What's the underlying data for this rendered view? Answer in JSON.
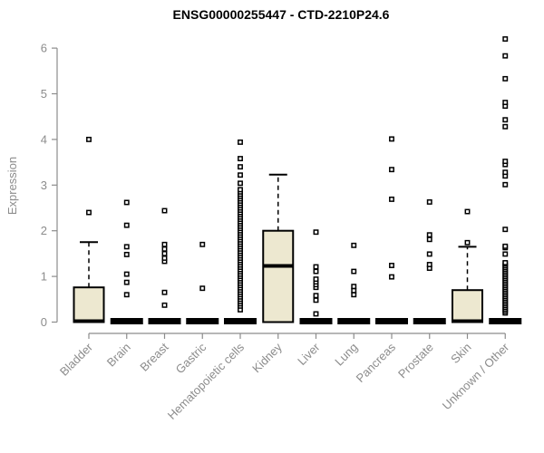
{
  "chart_data": {
    "type": "boxplot",
    "title": "ENSG00000255447 - CTD-2210P24.6",
    "xlabel": "",
    "ylabel": "Expression",
    "ylim": [
      0,
      6
    ],
    "yticks": [
      0,
      1,
      2,
      3,
      4,
      5,
      6
    ],
    "grid": false,
    "legend": "none",
    "colors": {
      "box_fill": "#ede8d0",
      "box_stroke": "#000000",
      "median": "#000000",
      "outlier_stroke": "#000000",
      "outlier_fill": "#ffffff",
      "axis": "#8c8c8c",
      "tick_label": "#8c8c8c",
      "title": "#000000"
    },
    "categories": [
      "Bladder",
      "Brain",
      "Breast",
      "Gastric",
      "Hematopoietic cells",
      "Kidney",
      "Liver",
      "Lung",
      "Pancreas",
      "Prostate",
      "Skin",
      "Unknown / Other"
    ],
    "series": [
      {
        "name": "Bladder",
        "q1": 0,
        "median": 0.02,
        "q3": 0.76,
        "whisker_low": 0,
        "whisker_high": 1.75,
        "outliers": [
          2.4,
          4.0
        ]
      },
      {
        "name": "Brain",
        "q1": 0,
        "median": 0,
        "q3": 0,
        "whisker_low": 0,
        "whisker_high": 0,
        "outliers": [
          0.6,
          0.87,
          1.05,
          1.48,
          1.65,
          2.12,
          2.62
        ]
      },
      {
        "name": "Breast",
        "q1": 0,
        "median": 0,
        "q3": 0,
        "whisker_low": 0,
        "whisker_high": 0,
        "outliers": [
          0.37,
          0.65,
          1.33,
          1.4,
          1.5,
          1.6,
          1.7,
          2.44
        ]
      },
      {
        "name": "Gastric",
        "q1": 0,
        "median": 0,
        "q3": 0,
        "whisker_low": 0,
        "whisker_high": 0,
        "outliers": [
          0.74,
          1.7
        ]
      },
      {
        "name": "Hematopoietic cells",
        "q1": 0,
        "median": 0,
        "q3": 0,
        "whisker_low": 0,
        "whisker_high": 0,
        "outliers": [
          0.27,
          0.35,
          0.4,
          0.45,
          0.5,
          0.55,
          0.6,
          0.65,
          0.7,
          0.75,
          0.8,
          0.85,
          0.9,
          0.95,
          1.0,
          1.05,
          1.1,
          1.15,
          1.2,
          1.25,
          1.3,
          1.35,
          1.4,
          1.45,
          1.5,
          1.55,
          1.6,
          1.65,
          1.7,
          1.75,
          1.8,
          1.85,
          1.9,
          1.95,
          2.0,
          2.05,
          2.1,
          2.15,
          2.2,
          2.25,
          2.3,
          2.35,
          2.4,
          2.45,
          2.5,
          2.55,
          2.6,
          2.65,
          2.7,
          2.75,
          2.8,
          2.85,
          2.9,
          3.04,
          3.22,
          3.4,
          3.58,
          3.94
        ]
      },
      {
        "name": "Kidney",
        "q1": 0,
        "median": 1.23,
        "q3": 2.0,
        "whisker_low": 0,
        "whisker_high": 3.23,
        "outliers": []
      },
      {
        "name": "Liver",
        "q1": 0,
        "median": 0,
        "q3": 0,
        "whisker_low": 0,
        "whisker_high": 0,
        "outliers": [
          0.18,
          0.48,
          0.58,
          0.76,
          0.82,
          0.88,
          0.94,
          1.11,
          1.21,
          1.97
        ]
      },
      {
        "name": "Lung",
        "q1": 0,
        "median": 0,
        "q3": 0,
        "whisker_low": 0,
        "whisker_high": 0,
        "outliers": [
          0.6,
          0.69,
          0.78,
          1.11,
          1.68
        ]
      },
      {
        "name": "Pancreas",
        "q1": 0,
        "median": 0,
        "q3": 0,
        "whisker_low": 0,
        "whisker_high": 0,
        "outliers": [
          0.99,
          1.24,
          2.69,
          3.34,
          4.01
        ]
      },
      {
        "name": "Prostate",
        "q1": 0,
        "median": 0,
        "q3": 0,
        "whisker_low": 0,
        "whisker_high": 0,
        "outliers": [
          1.18,
          1.26,
          1.49,
          1.81,
          1.91,
          2.63
        ]
      },
      {
        "name": "Skin",
        "q1": 0,
        "median": 0.02,
        "q3": 0.7,
        "whisker_low": 0,
        "whisker_high": 1.65,
        "outliers": [
          1.74,
          2.42
        ]
      },
      {
        "name": "Unknown / Other",
        "q1": 0,
        "median": 0,
        "q3": 0,
        "whisker_low": 0,
        "whisker_high": 0,
        "outliers": [
          0.2,
          0.24,
          0.28,
          0.32,
          0.36,
          0.4,
          0.44,
          0.48,
          0.52,
          0.56,
          0.6,
          0.64,
          0.68,
          0.72,
          0.76,
          0.8,
          0.84,
          0.88,
          0.92,
          0.96,
          1.0,
          1.04,
          1.08,
          1.12,
          1.16,
          1.2,
          1.24,
          1.28,
          1.3,
          1.49,
          1.63,
          1.66,
          2.03,
          3.01,
          3.2,
          3.28,
          3.45,
          3.52,
          4.28,
          4.43,
          4.73,
          4.81,
          5.33,
          5.83,
          6.2
        ]
      }
    ]
  }
}
